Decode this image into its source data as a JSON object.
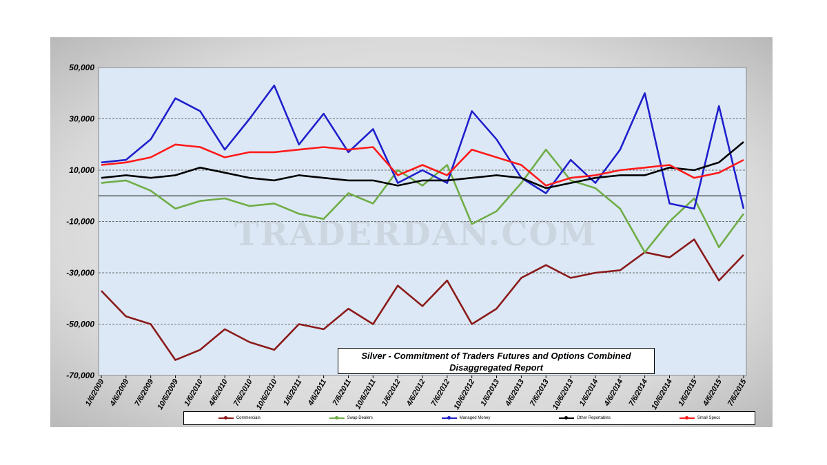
{
  "chart_data": {
    "type": "line",
    "title": "Silver - Commitment of Traders Futures and Options Combined",
    "subtitle": "Disaggregated  Report",
    "watermark": "TRADERDAN.COM",
    "ylim": [
      -70000,
      50000
    ],
    "y_ticks": [
      "50,000",
      "30,000",
      "10,000",
      "-10,000",
      "-30,000",
      "-50,000",
      "-70,000"
    ],
    "x_tick_labels": [
      "1/6/2009",
      "4/6/2009",
      "7/6/2009",
      "10/6/2009",
      "1/6/2010",
      "4/6/2010",
      "7/6/2010",
      "10/6/2010",
      "1/6/2011",
      "4/6/2011",
      "7/6/2011",
      "10/6/2011",
      "1/6/2012",
      "4/6/2012",
      "7/6/2012",
      "10/6/2012",
      "1/6/2013",
      "4/6/2013",
      "7/6/2013",
      "10/6/2013",
      "1/6/2014",
      "4/6/2014",
      "7/6/2014",
      "10/6/2014",
      "1/6/2015",
      "4/6/2015",
      "7/6/2015"
    ],
    "x_values": [
      "2009-01",
      "2009-04",
      "2009-07",
      "2009-10",
      "2010-01",
      "2010-04",
      "2010-07",
      "2010-10",
      "2011-01",
      "2011-04",
      "2011-07",
      "2011-10",
      "2012-01",
      "2012-04",
      "2012-07",
      "2012-10",
      "2013-01",
      "2013-04",
      "2013-07",
      "2013-10",
      "2014-01",
      "2014-04",
      "2014-07",
      "2014-10",
      "2015-01",
      "2015-04",
      "2015-07"
    ],
    "series": [
      {
        "name": "Commercials",
        "color": "#8b1a1a",
        "values": [
          -37000,
          -47000,
          -50000,
          -64000,
          -60000,
          -52000,
          -57000,
          -60000,
          -50000,
          -52000,
          -44000,
          -50000,
          -35000,
          -43000,
          -33000,
          -50000,
          -44000,
          -32000,
          -27000,
          -32000,
          -30000,
          -29000,
          -22000,
          -24000,
          -17000,
          -33000,
          -23000
        ]
      },
      {
        "name": "Swap Dealers",
        "color": "#70ad47",
        "values": [
          5000,
          6000,
          2000,
          -5000,
          -2000,
          -1000,
          -4000,
          -3000,
          -7000,
          -9000,
          1000,
          -3000,
          10000,
          4000,
          12000,
          -11000,
          -6000,
          5000,
          18000,
          6000,
          3000,
          -5000,
          -22000,
          -10000,
          -1000,
          -20000,
          -7000
        ]
      },
      {
        "name": "Managed Money",
        "color": "#1f1fcc",
        "values": [
          13000,
          14000,
          22000,
          38000,
          33000,
          18000,
          30000,
          43000,
          20000,
          32000,
          17000,
          26000,
          5000,
          10000,
          5000,
          33000,
          22000,
          7000,
          1000,
          14000,
          5000,
          18000,
          40000,
          -3000,
          -5000,
          35000,
          -5000
        ]
      },
      {
        "name": "Other Reportables",
        "color": "#000000",
        "values": [
          7000,
          8000,
          7000,
          8000,
          11000,
          9000,
          7000,
          6000,
          8000,
          7000,
          6000,
          6000,
          4000,
          6000,
          6000,
          7000,
          8000,
          7000,
          3000,
          5000,
          7000,
          8000,
          8000,
          11000,
          10000,
          13000,
          21000
        ]
      },
      {
        "name": "Small Specs",
        "color": "#ff1a1a",
        "values": [
          12000,
          13000,
          15000,
          20000,
          19000,
          15000,
          17000,
          17000,
          18000,
          19000,
          18000,
          19000,
          8000,
          12000,
          8000,
          18000,
          15000,
          12000,
          4000,
          7000,
          8000,
          10000,
          11000,
          12000,
          7000,
          9000,
          14000
        ]
      }
    ]
  }
}
